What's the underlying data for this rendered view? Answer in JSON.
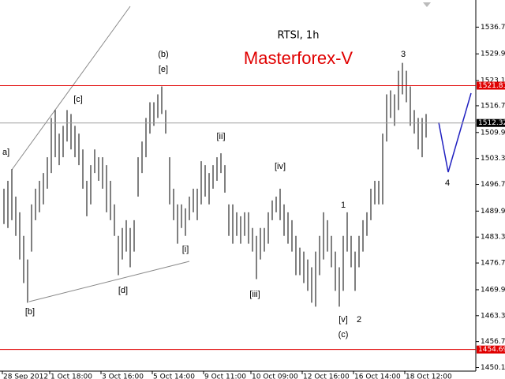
{
  "chart_data": {
    "type": "ohlc",
    "title": "RTSI, 1h",
    "subtitle": "Masterforex-V",
    "categories": [
      "28 Sep 2012",
      null,
      null,
      null,
      null,
      null,
      null,
      null,
      null,
      null,
      null,
      null,
      "1 Oct 18:00",
      null,
      null,
      null,
      null,
      null,
      null,
      null,
      null,
      null,
      null,
      null,
      null,
      "3 Oct 16:00",
      null,
      null,
      null,
      null,
      null,
      null,
      null,
      null,
      null,
      null,
      null,
      null,
      "5 Oct 14:00",
      null,
      null,
      null,
      null,
      null,
      null,
      null,
      null,
      null,
      null,
      null,
      null,
      "9 Oct 11:00",
      null,
      null,
      null,
      null,
      null,
      null,
      null,
      null,
      null,
      null,
      null,
      "10 Oct 09:00",
      null,
      null,
      null,
      null,
      null,
      null,
      null,
      null,
      null,
      null,
      null,
      null,
      "12 Oct 16:00",
      null,
      null,
      null,
      null,
      null,
      null,
      null,
      null,
      null,
      null,
      null,
      null,
      "16 Oct 14:00",
      null,
      null,
      null,
      null,
      null,
      null,
      null,
      null,
      null,
      null,
      null,
      null,
      "18 Oct 12:00",
      null,
      null,
      null,
      null,
      null
    ],
    "high": [
      1495.6,
      1497.6,
      1500.6,
      1493.6,
      1489.6,
      1483.6,
      1477.6,
      1491.6,
      1495.6,
      1497.6,
      1499.6,
      1503.6,
      1513.6,
      1515.6,
      1509.6,
      1511.6,
      1515.6,
      1514.6,
      1511.6,
      1509.6,
      1505.6,
      1497.6,
      1501.6,
      1505.6,
      1503.6,
      1503.6,
      1501.6,
      1497.6,
      1491.6,
      1483.6,
      1485.6,
      1487.6,
      1485.6,
      1487.6,
      1503.6,
      1507.6,
      1513.6,
      1517.6,
      1517.6,
      1519.6,
      1521.6,
      1515.6,
      1503.6,
      1495.6,
      1491.6,
      1491.6,
      1490.6,
      1493.6,
      1495.6,
      1495.6,
      1502.6,
      1501.6,
      1499.6,
      1501.6,
      1503.6,
      1504.6,
      1501.6,
      1491.6,
      1491.6,
      1489.6,
      1488.6,
      1489.6,
      1489.6,
      1485.6,
      1483.6,
      1485.6,
      1485.6,
      1489.6,
      1492.6,
      1493.6,
      1495.6,
      1491.6,
      1489.6,
      1487.6,
      1483.6,
      1480.6,
      1479.6,
      1477.6,
      1475.6,
      1479.6,
      1483.6,
      1489.6,
      1487.6,
      1483.6,
      1479.6,
      1475.6,
      1483.6,
      1489.6,
      1483.6,
      1479.6,
      1483.6,
      1487.6,
      1489.6,
      1495.6,
      1497.6,
      1497.6,
      1509.6,
      1519.6,
      1520.6,
      1519.6,
      1525.6,
      1527.6,
      1525.6,
      1521.6,
      1515.6,
      1513.6,
      1513.6,
      1514.6
    ],
    "low": [
      1486.6,
      1485.6,
      1487.6,
      1483.6,
      1477.6,
      1471.6,
      1466.6,
      1479.6,
      1487.6,
      1489.6,
      1491.6,
      1495.6,
      1499.6,
      1503.6,
      1501.6,
      1503.6,
      1507.6,
      1505.6,
      1503.6,
      1501.6,
      1495.6,
      1488.6,
      1491.6,
      1499.6,
      1497.6,
      1495.6,
      1489.6,
      1487.6,
      1483.6,
      1473.6,
      1477.6,
      1479.6,
      1475.6,
      1479.6,
      1493.6,
      1499.6,
      1503.6,
      1509.6,
      1511.6,
      1513.6,
      1514.6,
      1509.6,
      1491.6,
      1487.6,
      1481.6,
      1485.6,
      1483.6,
      1487.6,
      1489.6,
      1487.6,
      1491.6,
      1493.6,
      1491.6,
      1495.6,
      1497.6,
      1499.6,
      1494.6,
      1483.6,
      1481.6,
      1483.6,
      1481.6,
      1483.6,
      1481.6,
      1479.6,
      1472.6,
      1477.6,
      1479.6,
      1481.6,
      1487.6,
      1489.6,
      1487.6,
      1483.6,
      1481.6,
      1479.6,
      1473.6,
      1473.6,
      1471.6,
      1469.6,
      1466.6,
      1465.6,
      1473.6,
      1477.6,
      1479.6,
      1475.6,
      1469.6,
      1465.6,
      1469.6,
      1479.6,
      1475.6,
      1469.6,
      1475.6,
      1479.6,
      1483.6,
      1487.6,
      1491.6,
      1491.6,
      1491.6,
      1507.6,
      1513.6,
      1511.6,
      1515.6,
      1519.6,
      1517.6,
      1511.6,
      1509.6,
      1505.6,
      1503.6,
      1508.6
    ],
    "color": "#000000",
    "ylim": [
      1449.2,
      1543.6
    ],
    "yticks": [
      {
        "value": 1536.7,
        "label": "1536.70"
      },
      {
        "value": 1529.9,
        "label": "1529.90"
      },
      {
        "value": 1523.1,
        "label": "1523.10"
      },
      {
        "value": 1516.7,
        "label": "1516.70"
      },
      {
        "value": 1509.9,
        "label": "1509.90"
      },
      {
        "value": 1503.3,
        "label": "1503.30"
      },
      {
        "value": 1496.7,
        "label": "1496.70"
      },
      {
        "value": 1489.9,
        "label": "1489.90"
      },
      {
        "value": 1483.3,
        "label": "1483.30"
      },
      {
        "value": 1476.7,
        "label": "1476.70"
      },
      {
        "value": 1469.9,
        "label": "1469.90"
      },
      {
        "value": 1463.3,
        "label": "1463.30"
      },
      {
        "value": 1456.7,
        "label": "1456.70"
      },
      {
        "value": 1450.1,
        "label": "1450.10"
      }
    ],
    "levels": [
      {
        "value": 1512.32,
        "color": "#a0a0a0"
      },
      {
        "value": 1521.81,
        "color": "#e00000"
      },
      {
        "value": 1454.69,
        "color": "#e00000"
      }
    ],
    "annotations": [
      "a]",
      "[b]",
      "[c]",
      "[d]",
      "(b)",
      "[e]",
      "[i]",
      "[ii]",
      "[iii]",
      "[iv]",
      "1",
      "2",
      "[v]",
      "(c)",
      "3",
      "4"
    ]
  }
}
